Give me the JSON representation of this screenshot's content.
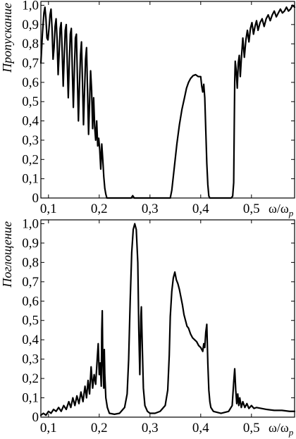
{
  "chart_data": [
    {
      "type": "line",
      "ylabel": "Пропускание",
      "xlabel": "ω/ω",
      "xlabel_sub": "p",
      "xlim": [
        0.085,
        0.585
      ],
      "ylim": [
        0,
        1.02
      ],
      "xticks": [
        0.1,
        0.2,
        0.3,
        0.4,
        0.5
      ],
      "xtick_labels": [
        "0,1",
        "0,2",
        "0,3",
        "0,4",
        "0,5"
      ],
      "yticks": [
        0,
        0.1,
        0.2,
        0.3,
        0.4,
        0.5,
        0.6,
        0.7,
        0.8,
        0.9,
        1.0
      ],
      "ytick_labels": [
        "0",
        "0,1",
        "0,2",
        "0,3",
        "0,4",
        "0,5",
        "0,6",
        "0,7",
        "0,8",
        "0,9",
        "1,0"
      ],
      "grid": false,
      "series": [
        {
          "points": [
            [
              0.085,
              0.7
            ],
            [
              0.088,
              0.85
            ],
            [
              0.091,
              0.96
            ],
            [
              0.093,
              0.99
            ],
            [
              0.095,
              0.93
            ],
            [
              0.097,
              0.83
            ],
            [
              0.099,
              0.82
            ],
            [
              0.101,
              0.88
            ],
            [
              0.103,
              0.95
            ],
            [
              0.105,
              0.98
            ],
            [
              0.107,
              0.88
            ],
            [
              0.109,
              0.72
            ],
            [
              0.111,
              0.78
            ],
            [
              0.113,
              0.89
            ],
            [
              0.115,
              0.93
            ],
            [
              0.117,
              0.82
            ],
            [
              0.119,
              0.64
            ],
            [
              0.121,
              0.75
            ],
            [
              0.123,
              0.88
            ],
            [
              0.125,
              0.91
            ],
            [
              0.127,
              0.76
            ],
            [
              0.129,
              0.58
            ],
            [
              0.131,
              0.73
            ],
            [
              0.133,
              0.87
            ],
            [
              0.135,
              0.9
            ],
            [
              0.137,
              0.7
            ],
            [
              0.139,
              0.52
            ],
            [
              0.141,
              0.7
            ],
            [
              0.143,
              0.85
            ],
            [
              0.145,
              0.88
            ],
            [
              0.147,
              0.66
            ],
            [
              0.149,
              0.47
            ],
            [
              0.151,
              0.66
            ],
            [
              0.153,
              0.83
            ],
            [
              0.155,
              0.85
            ],
            [
              0.157,
              0.62
            ],
            [
              0.159,
              0.4
            ],
            [
              0.161,
              0.58
            ],
            [
              0.163,
              0.74
            ],
            [
              0.165,
              0.81
            ],
            [
              0.167,
              0.6
            ],
            [
              0.169,
              0.38
            ],
            [
              0.171,
              0.55
            ],
            [
              0.173,
              0.72
            ],
            [
              0.175,
              0.78
            ],
            [
              0.177,
              0.55
            ],
            [
              0.179,
              0.33
            ],
            [
              0.181,
              0.5
            ],
            [
              0.183,
              0.66
            ],
            [
              0.185,
              0.56
            ],
            [
              0.187,
              0.36
            ],
            [
              0.189,
              0.52
            ],
            [
              0.191,
              0.37
            ],
            [
              0.193,
              0.3
            ],
            [
              0.195,
              0.4
            ],
            [
              0.197,
              0.27
            ],
            [
              0.199,
              0.31
            ],
            [
              0.201,
              0.25
            ],
            [
              0.203,
              0.15
            ],
            [
              0.205,
              0.28
            ],
            [
              0.207,
              0.2
            ],
            [
              0.209,
              0.11
            ],
            [
              0.211,
              0.05
            ],
            [
              0.213,
              0.02
            ],
            [
              0.215,
              0.0
            ],
            [
              0.22,
              0.0
            ],
            [
              0.25,
              0.0
            ],
            [
              0.263,
              0.0
            ],
            [
              0.266,
              0.012
            ],
            [
              0.269,
              0.0
            ],
            [
              0.3,
              0.0
            ],
            [
              0.34,
              0.0
            ],
            [
              0.343,
              0.04
            ],
            [
              0.348,
              0.16
            ],
            [
              0.353,
              0.28
            ],
            [
              0.358,
              0.38
            ],
            [
              0.363,
              0.46
            ],
            [
              0.368,
              0.52
            ],
            [
              0.372,
              0.57
            ],
            [
              0.376,
              0.6
            ],
            [
              0.38,
              0.62
            ],
            [
              0.385,
              0.635
            ],
            [
              0.39,
              0.64
            ],
            [
              0.395,
              0.63
            ],
            [
              0.4,
              0.63
            ],
            [
              0.402,
              0.58
            ],
            [
              0.404,
              0.55
            ],
            [
              0.406,
              0.59
            ],
            [
              0.408,
              0.52
            ],
            [
              0.41,
              0.35
            ],
            [
              0.412,
              0.18
            ],
            [
              0.414,
              0.07
            ],
            [
              0.416,
              0.01
            ],
            [
              0.418,
              0.0
            ],
            [
              0.46,
              0.0
            ],
            [
              0.463,
              0.01
            ],
            [
              0.465,
              0.08
            ],
            [
              0.466,
              0.35
            ],
            [
              0.467,
              0.6
            ],
            [
              0.468,
              0.71
            ],
            [
              0.47,
              0.66
            ],
            [
              0.472,
              0.57
            ],
            [
              0.474,
              0.7
            ],
            [
              0.476,
              0.74
            ],
            [
              0.478,
              0.63
            ],
            [
              0.48,
              0.72
            ],
            [
              0.483,
              0.83
            ],
            [
              0.486,
              0.73
            ],
            [
              0.489,
              0.82
            ],
            [
              0.492,
              0.87
            ],
            [
              0.495,
              0.81
            ],
            [
              0.498,
              0.88
            ],
            [
              0.501,
              0.91
            ],
            [
              0.504,
              0.85
            ],
            [
              0.507,
              0.89
            ],
            [
              0.51,
              0.92
            ],
            [
              0.513,
              0.87
            ],
            [
              0.517,
              0.91
            ],
            [
              0.521,
              0.93
            ],
            [
              0.525,
              0.89
            ],
            [
              0.529,
              0.93
            ],
            [
              0.533,
              0.95
            ],
            [
              0.537,
              0.92
            ],
            [
              0.541,
              0.95
            ],
            [
              0.545,
              0.97
            ],
            [
              0.549,
              0.94
            ],
            [
              0.553,
              0.96
            ],
            [
              0.557,
              0.98
            ],
            [
              0.561,
              0.96
            ],
            [
              0.565,
              0.97
            ],
            [
              0.569,
              0.99
            ],
            [
              0.573,
              0.97
            ],
            [
              0.577,
              0.98
            ],
            [
              0.581,
              1.0
            ],
            [
              0.585,
              0.99
            ]
          ]
        }
      ]
    },
    {
      "type": "line",
      "ylabel": "Поглощение",
      "xlabel": "ω/ω",
      "xlabel_sub": "p",
      "xlim": [
        0.085,
        0.585
      ],
      "ylim": [
        0,
        1.02
      ],
      "xticks": [
        0.1,
        0.2,
        0.3,
        0.4,
        0.5
      ],
      "xtick_labels": [
        "0,1",
        "0,2",
        "0,3",
        "0,4",
        "0,5"
      ],
      "yticks": [
        0,
        0.1,
        0.2,
        0.3,
        0.4,
        0.5,
        0.6,
        0.7,
        0.8,
        0.9,
        1.0
      ],
      "ytick_labels": [
        "0",
        "0,1",
        "0,2",
        "0,3",
        "0,4",
        "0,5",
        "0,6",
        "0,7",
        "0,8",
        "0,9",
        "1,0"
      ],
      "grid": false,
      "series": [
        {
          "points": [
            [
              0.085,
              0.01
            ],
            [
              0.09,
              0.02
            ],
            [
              0.095,
              0.01
            ],
            [
              0.1,
              0.03
            ],
            [
              0.105,
              0.02
            ],
            [
              0.11,
              0.04
            ],
            [
              0.115,
              0.03
            ],
            [
              0.12,
              0.05
            ],
            [
              0.125,
              0.03
            ],
            [
              0.13,
              0.06
            ],
            [
              0.135,
              0.04
            ],
            [
              0.14,
              0.08
            ],
            [
              0.144,
              0.05
            ],
            [
              0.148,
              0.1
            ],
            [
              0.152,
              0.06
            ],
            [
              0.156,
              0.11
            ],
            [
              0.16,
              0.07
            ],
            [
              0.164,
              0.13
            ],
            [
              0.168,
              0.08
            ],
            [
              0.172,
              0.16
            ],
            [
              0.175,
              0.1
            ],
            [
              0.178,
              0.19
            ],
            [
              0.181,
              0.12
            ],
            [
              0.184,
              0.26
            ],
            [
              0.187,
              0.15
            ],
            [
              0.19,
              0.22
            ],
            [
              0.193,
              0.17
            ],
            [
              0.196,
              0.3
            ],
            [
              0.198,
              0.38
            ],
            [
              0.2,
              0.22
            ],
            [
              0.202,
              0.28
            ],
            [
              0.204,
              0.16
            ],
            [
              0.205,
              0.45
            ],
            [
              0.206,
              0.55
            ],
            [
              0.207,
              0.3
            ],
            [
              0.209,
              0.15
            ],
            [
              0.21,
              0.35
            ],
            [
              0.211,
              0.22
            ],
            [
              0.213,
              0.1
            ],
            [
              0.216,
              0.05
            ],
            [
              0.22,
              0.02
            ],
            [
              0.23,
              0.015
            ],
            [
              0.24,
              0.02
            ],
            [
              0.25,
              0.05
            ],
            [
              0.255,
              0.12
            ],
            [
              0.258,
              0.3
            ],
            [
              0.261,
              0.6
            ],
            [
              0.264,
              0.85
            ],
            [
              0.267,
              0.97
            ],
            [
              0.27,
              1.0
            ],
            [
              0.273,
              0.97
            ],
            [
              0.276,
              0.8
            ],
            [
              0.278,
              0.45
            ],
            [
              0.28,
              0.22
            ],
            [
              0.282,
              0.52
            ],
            [
              0.283,
              0.57
            ],
            [
              0.285,
              0.35
            ],
            [
              0.287,
              0.15
            ],
            [
              0.29,
              0.06
            ],
            [
              0.295,
              0.03
            ],
            [
              0.3,
              0.02
            ],
            [
              0.31,
              0.02
            ],
            [
              0.32,
              0.03
            ],
            [
              0.33,
              0.06
            ],
            [
              0.335,
              0.14
            ],
            [
              0.338,
              0.32
            ],
            [
              0.34,
              0.52
            ],
            [
              0.343,
              0.65
            ],
            [
              0.346,
              0.72
            ],
            [
              0.349,
              0.75
            ],
            [
              0.352,
              0.71
            ],
            [
              0.355,
              0.69
            ],
            [
              0.358,
              0.66
            ],
            [
              0.361,
              0.62
            ],
            [
              0.364,
              0.58
            ],
            [
              0.367,
              0.53
            ],
            [
              0.37,
              0.5
            ],
            [
              0.373,
              0.47
            ],
            [
              0.376,
              0.46
            ],
            [
              0.38,
              0.43
            ],
            [
              0.384,
              0.41
            ],
            [
              0.388,
              0.4
            ],
            [
              0.392,
              0.39
            ],
            [
              0.396,
              0.37
            ],
            [
              0.4,
              0.36
            ],
            [
              0.404,
              0.34
            ],
            [
              0.406,
              0.38
            ],
            [
              0.408,
              0.36
            ],
            [
              0.41,
              0.44
            ],
            [
              0.412,
              0.48
            ],
            [
              0.414,
              0.28
            ],
            [
              0.416,
              0.14
            ],
            [
              0.418,
              0.08
            ],
            [
              0.42,
              0.05
            ],
            [
              0.425,
              0.03
            ],
            [
              0.44,
              0.02
            ],
            [
              0.455,
              0.03
            ],
            [
              0.462,
              0.06
            ],
            [
              0.465,
              0.18
            ],
            [
              0.467,
              0.25
            ],
            [
              0.469,
              0.14
            ],
            [
              0.471,
              0.07
            ],
            [
              0.473,
              0.12
            ],
            [
              0.475,
              0.06
            ],
            [
              0.477,
              0.1
            ],
            [
              0.48,
              0.05
            ],
            [
              0.483,
              0.08
            ],
            [
              0.487,
              0.05
            ],
            [
              0.491,
              0.07
            ],
            [
              0.495,
              0.045
            ],
            [
              0.5,
              0.06
            ],
            [
              0.505,
              0.045
            ],
            [
              0.51,
              0.05
            ],
            [
              0.52,
              0.045
            ],
            [
              0.53,
              0.04
            ],
            [
              0.545,
              0.035
            ],
            [
              0.56,
              0.035
            ],
            [
              0.575,
              0.03
            ],
            [
              0.585,
              0.03
            ]
          ]
        }
      ]
    }
  ]
}
